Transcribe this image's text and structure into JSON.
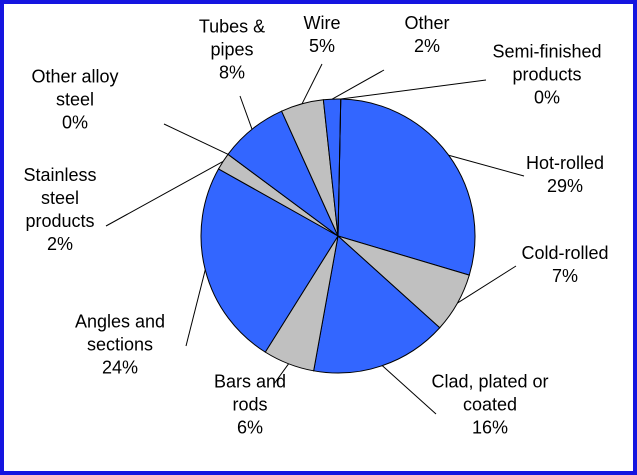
{
  "chart_data": {
    "type": "pie",
    "categories": [
      "Hot-rolled",
      "Cold-rolled",
      "Clad, plated or coated",
      "Bars and rods",
      "Angles and sections",
      "Stainless steel products",
      "Other alloy steel",
      "Tubes & pipes",
      "Wire",
      "Other",
      "Semi-finished products"
    ],
    "values": [
      29,
      7,
      16,
      6,
      24,
      2,
      0,
      8,
      5,
      2,
      0
    ],
    "value_labels": [
      "29%",
      "7%",
      "16%",
      "6%",
      "24%",
      "2%",
      "0%",
      "8%",
      "5%",
      "2%",
      "0%"
    ],
    "colors": [
      "#3366ff",
      "#c0c0c0",
      "#3366ff",
      "#c0c0c0",
      "#3366ff",
      "#c0c0c0",
      "#3366ff",
      "#3366ff",
      "#c0c0c0",
      "#3366ff",
      "#c0c0c0"
    ]
  }
}
